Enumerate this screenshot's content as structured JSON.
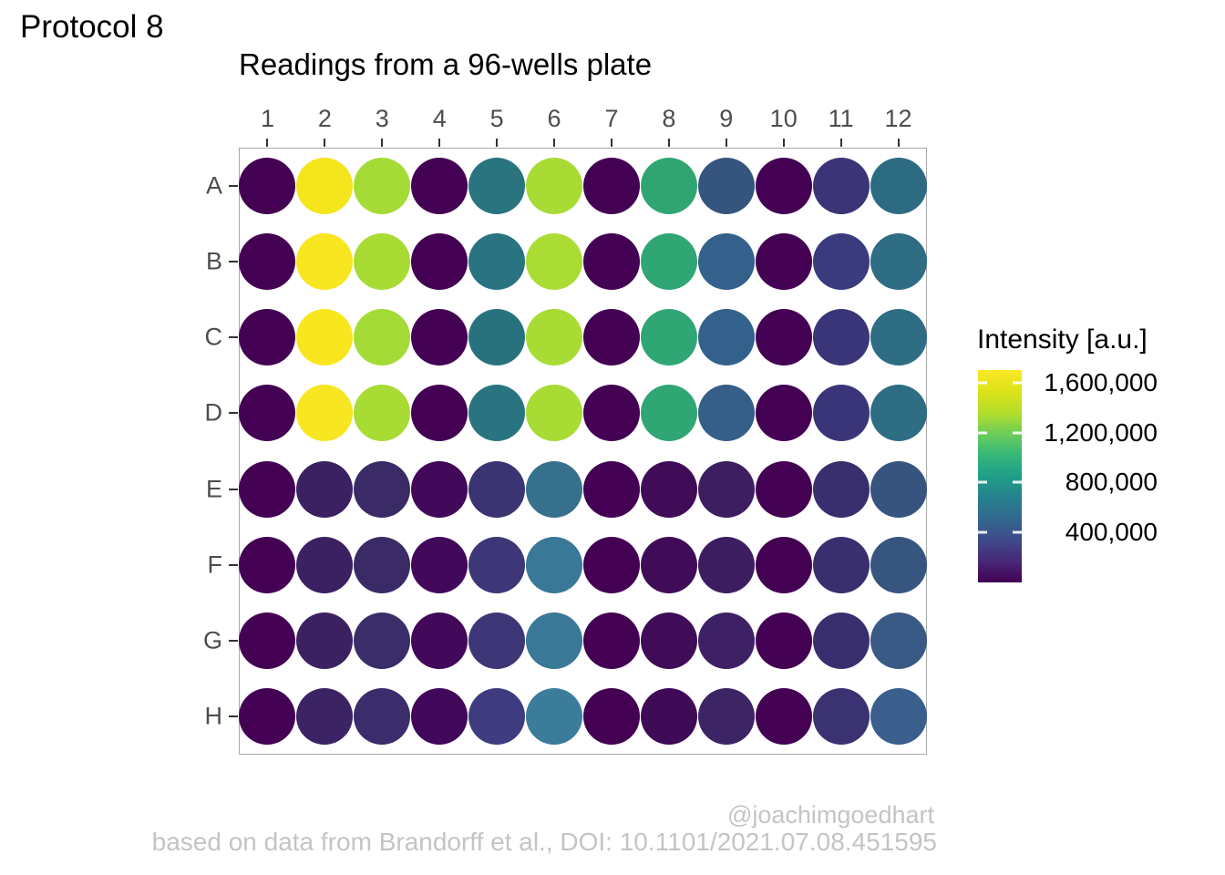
{
  "header": {
    "protocol": "Protocol 8"
  },
  "footer": {
    "credit": "@joachimgoedhart",
    "caption": "based on data from Brandorff et al., DOI: 10.1101/2021.07.08.451595"
  },
  "chart_data": {
    "type": "heatmap",
    "title": "Readings from a 96-wells plate",
    "xlabel": "",
    "ylabel": "",
    "grid": false,
    "panel_border_color": "#A8A8A8",
    "axis_text_color": "#4D4D4D",
    "columns": [
      "1",
      "2",
      "3",
      "4",
      "5",
      "6",
      "7",
      "8",
      "9",
      "10",
      "11",
      "12"
    ],
    "rows": [
      "A",
      "B",
      "C",
      "D",
      "E",
      "F",
      "G",
      "H"
    ],
    "legend": {
      "title": "Intensity [a.u.]",
      "position": "right",
      "scale_name": "viridis",
      "range": [
        0,
        1700000
      ],
      "ticks": [
        {
          "label": "1,600,000",
          "value": 1600000
        },
        {
          "label": "1,200,000",
          "value": 1200000
        },
        {
          "label": "800,000",
          "value": 800000
        },
        {
          "label": "400,000",
          "value": 400000
        }
      ],
      "gradient_bottom_to_top": [
        "#440154",
        "#482878",
        "#3E4A89",
        "#31688E",
        "#26828E",
        "#1F9E89",
        "#35B779",
        "#6DCD59",
        "#B4DE2C",
        "#DCE319",
        "#FDE725"
      ]
    },
    "wells": [
      {
        "row": "A",
        "colors": [
          "#440154",
          "#F4E51C",
          "#A5DB36",
          "#440154",
          "#2A7480",
          "#A8DB34",
          "#440154",
          "#30A572",
          "#35557F",
          "#440154",
          "#3B3477",
          "#2D6B82"
        ],
        "values_estimated": [
          30000,
          1630000,
          1320000,
          30000,
          710000,
          1330000,
          30000,
          940000,
          410000,
          30000,
          260000,
          610000
        ]
      },
      {
        "row": "B",
        "colors": [
          "#440154",
          "#F8E621",
          "#A8DB34",
          "#440154",
          "#2A7482",
          "#ABDC33",
          "#440154",
          "#2FA674",
          "#34618B",
          "#440154",
          "#3A3A7E",
          "#2E6D84"
        ],
        "values_estimated": [
          30000,
          1650000,
          1330000,
          30000,
          710000,
          1340000,
          30000,
          950000,
          490000,
          30000,
          310000,
          630000
        ]
      },
      {
        "row": "C",
        "colors": [
          "#440154",
          "#F8E71F",
          "#A5DB36",
          "#440154",
          "#28727E",
          "#A8DB34",
          "#440154",
          "#2FA674",
          "#33618C",
          "#440154",
          "#3A3578",
          "#2E6D84"
        ],
        "values_estimated": [
          30000,
          1650000,
          1320000,
          30000,
          700000,
          1330000,
          30000,
          950000,
          490000,
          30000,
          270000,
          630000
        ]
      },
      {
        "row": "D",
        "colors": [
          "#440154",
          "#F8E621",
          "#A8DB34",
          "#440154",
          "#2A7482",
          "#A8DB34",
          "#440154",
          "#2FA674",
          "#355E88",
          "#440154",
          "#3A3578",
          "#2E6D84"
        ],
        "values_estimated": [
          30000,
          1650000,
          1330000,
          30000,
          710000,
          1330000,
          30000,
          950000,
          470000,
          30000,
          270000,
          630000
        ]
      },
      {
        "row": "E",
        "colors": [
          "#440154",
          "#3C2162",
          "#3A2B67",
          "#42085A",
          "#3B3472",
          "#37708C",
          "#440154",
          "#400C58",
          "#3D1F61",
          "#440154",
          "#3A2F6E",
          "#36547E"
        ],
        "values_estimated": [
          30000,
          140000,
          190000,
          50000,
          240000,
          560000,
          30000,
          70000,
          140000,
          30000,
          200000,
          410000
        ]
      },
      {
        "row": "F",
        "colors": [
          "#440154",
          "#3C2162",
          "#3A2B67",
          "#42085A",
          "#3D3677",
          "#397896",
          "#440154",
          "#400C58",
          "#3C1E60",
          "#440154",
          "#3A2F6E",
          "#37567F"
        ],
        "values_estimated": [
          30000,
          140000,
          190000,
          50000,
          270000,
          610000,
          30000,
          70000,
          140000,
          30000,
          200000,
          430000
        ]
      },
      {
        "row": "G",
        "colors": [
          "#440154",
          "#3C2162",
          "#3B2D69",
          "#42085A",
          "#3D3677",
          "#397896",
          "#440154",
          "#400C58",
          "#3D2164",
          "#440154",
          "#3A2F6E",
          "#395A85"
        ],
        "values_estimated": [
          30000,
          140000,
          190000,
          50000,
          270000,
          610000,
          30000,
          70000,
          150000,
          30000,
          200000,
          460000
        ]
      },
      {
        "row": "H",
        "colors": [
          "#440154",
          "#3C2464",
          "#3B2D6B",
          "#41075A",
          "#3E3B7E",
          "#3A7C99",
          "#440154",
          "#3F0A56",
          "#3D2465",
          "#440154",
          "#3B3272",
          "#3A5F8C"
        ],
        "values_estimated": [
          30000,
          150000,
          190000,
          50000,
          310000,
          650000,
          30000,
          50000,
          150000,
          30000,
          240000,
          490000
        ]
      }
    ]
  }
}
